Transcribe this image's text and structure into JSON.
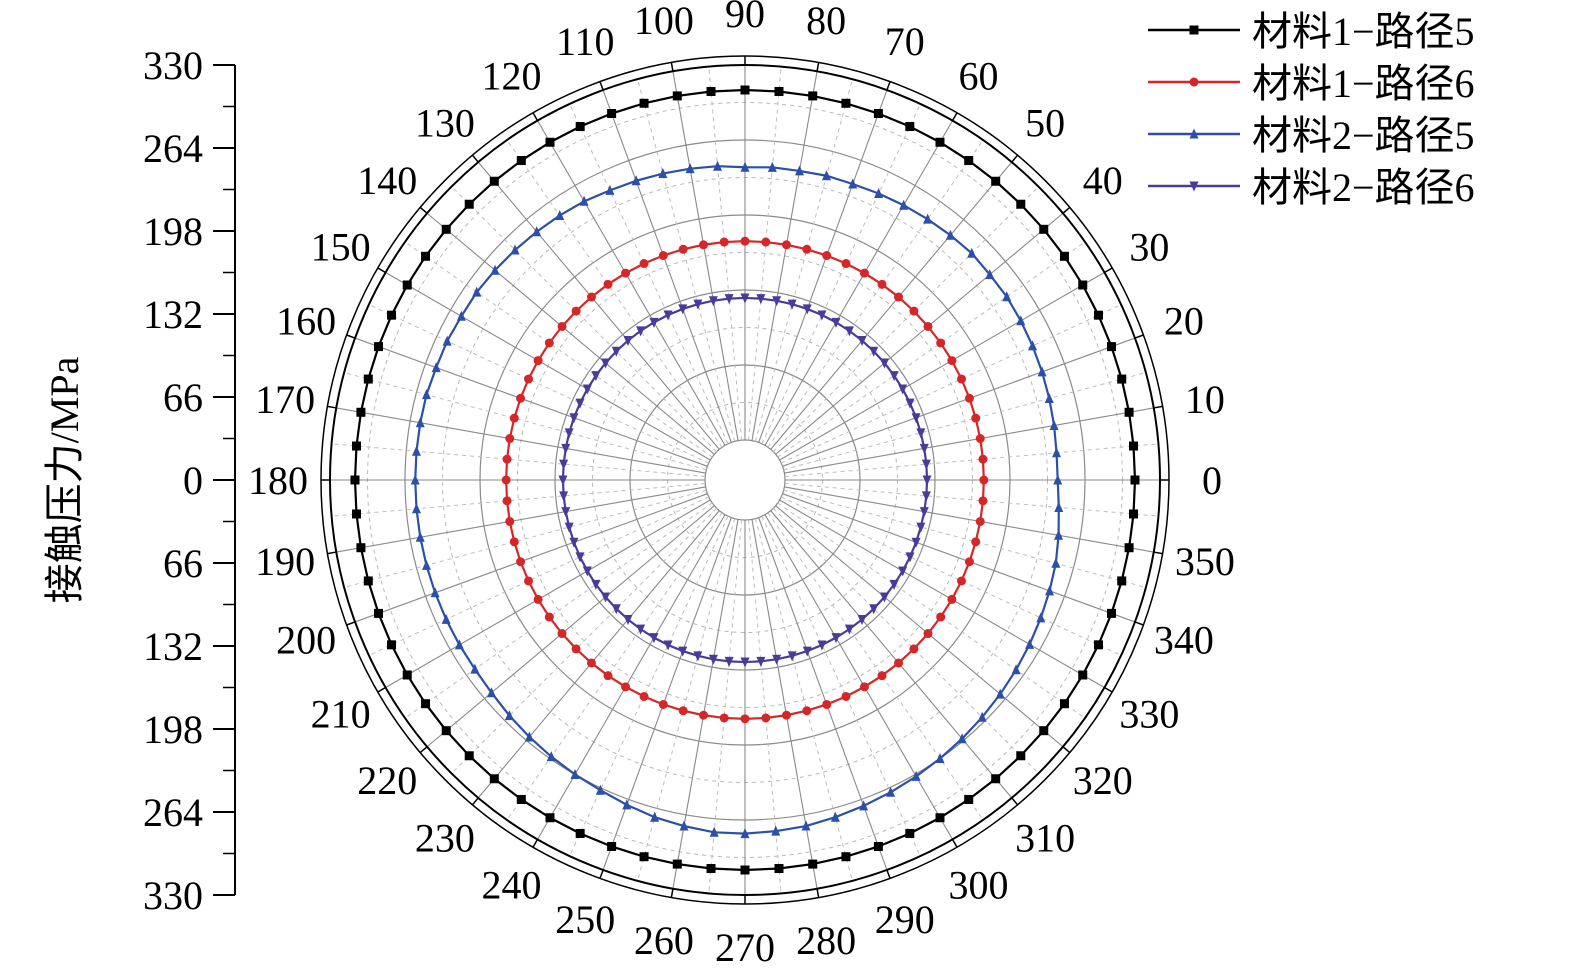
{
  "chart_data": {
    "type": "line",
    "subtype": "polar",
    "radial_axis": {
      "label": "接触压力/MPa",
      "range": [
        0,
        330
      ],
      "ticks_upper": [
        "330",
        "264",
        "198",
        "132",
        "66",
        "0"
      ],
      "ticks_lower": [
        "66",
        "132",
        "198",
        "264",
        "330"
      ]
    },
    "angular_axis": {
      "unit": "degrees",
      "tick_labels": [
        "0",
        "10",
        "20",
        "30",
        "40",
        "50",
        "60",
        "70",
        "80",
        "90",
        "100",
        "110",
        "120",
        "130",
        "140",
        "150",
        "160",
        "170",
        "180",
        "190",
        "200",
        "210",
        "220",
        "230",
        "240",
        "250",
        "260",
        "270",
        "280",
        "290",
        "300",
        "310",
        "320",
        "330",
        "340",
        "350"
      ]
    },
    "grid": true,
    "legend_position": "top-right",
    "angle_step_deg": 5,
    "series": [
      {
        "name": "材料1−路径5",
        "color": "#000000",
        "marker": "square",
        "values": [
          308,
          308,
          308,
          308,
          308,
          308,
          308,
          308,
          308,
          308,
          308,
          308,
          308,
          308,
          308,
          308,
          308,
          308,
          308,
          308,
          308,
          308,
          308,
          308,
          308,
          308,
          308,
          308,
          308,
          308,
          308,
          308,
          308,
          308,
          308,
          308,
          308,
          308,
          308,
          308,
          308,
          308,
          308,
          308,
          308,
          308,
          308,
          308,
          308,
          308,
          308,
          308,
          308,
          308,
          308,
          308,
          308,
          308,
          308,
          308,
          308,
          308,
          308,
          308,
          308,
          308,
          308,
          308,
          308,
          308,
          308,
          308
        ]
      },
      {
        "name": "材料1−路径6",
        "color": "#d62728",
        "marker": "circle",
        "values": [
          175,
          175,
          175,
          175,
          175,
          175,
          175,
          175,
          175,
          175,
          175,
          175,
          175,
          175,
          175,
          175,
          175,
          175,
          175,
          175,
          175,
          175,
          175,
          175,
          175,
          175,
          175,
          175,
          175,
          175,
          175,
          175,
          175,
          175,
          175,
          175,
          175,
          175,
          175,
          175,
          175,
          175,
          175,
          175,
          175,
          175,
          175,
          175,
          175,
          175,
          175,
          175,
          175,
          175,
          175,
          175,
          175,
          175,
          175,
          175,
          175,
          175,
          175,
          175,
          175,
          175,
          175,
          175,
          175,
          175,
          175,
          175
        ]
      },
      {
        "name": "材料2−路径5",
        "color": "#2c4fa8",
        "marker": "triangle-up",
        "values": [
          240,
          240,
          241,
          242,
          243,
          244,
          245,
          246,
          246,
          247,
          246,
          245,
          244,
          243,
          242,
          242,
          241,
          241,
          240,
          242,
          243,
          244,
          245,
          246,
          248,
          249,
          250,
          251,
          252,
          253,
          253,
          254,
          254,
          255,
          255,
          255,
          255,
          255,
          255,
          255,
          255,
          255,
          255,
          255,
          256,
          258,
          260,
          262,
          264,
          266,
          269,
          272,
          274,
          276,
          276,
          275,
          274,
          272,
          270,
          268,
          266,
          264,
          262,
          260,
          258,
          256,
          254,
          252,
          250,
          248,
          245,
          242
        ]
      },
      {
        "name": "材料2−路径6",
        "color": "#4b3a9a",
        "marker": "triangle-down",
        "values": [
          125,
          125,
          125,
          125,
          125,
          125,
          125,
          125,
          125,
          125,
          125,
          125,
          125,
          125,
          125,
          125,
          125,
          125,
          125,
          125,
          125,
          125,
          125,
          125,
          125,
          125,
          125,
          125,
          125,
          125,
          125,
          125,
          125,
          125,
          125,
          125,
          125,
          125,
          125,
          125,
          125,
          125,
          125,
          125,
          125,
          125,
          125,
          125,
          125,
          125,
          125,
          125,
          125,
          125,
          125,
          125,
          125,
          125,
          125,
          125,
          125,
          125,
          125,
          125,
          125,
          125,
          125,
          125,
          125,
          125,
          125,
          125
        ]
      }
    ]
  }
}
